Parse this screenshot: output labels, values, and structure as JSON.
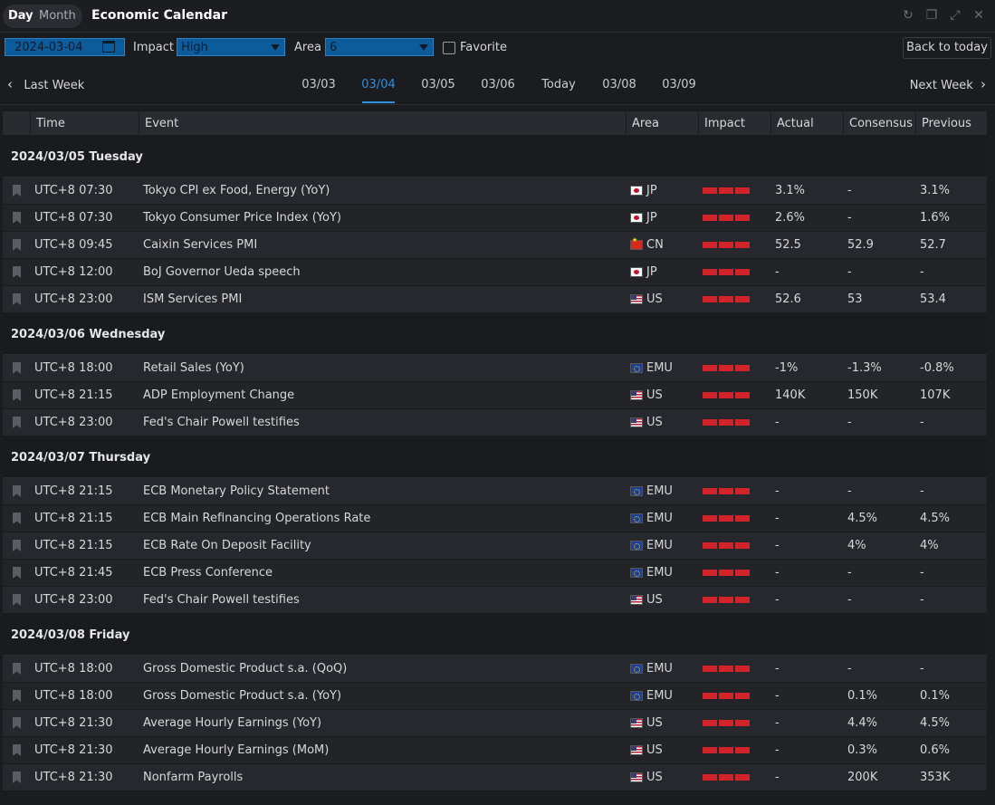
{
  "header": {
    "tab_day": "Day",
    "tab_month": "Month",
    "title": "Economic Calendar",
    "icons": [
      "refresh-icon",
      "restore-icon",
      "expand-icon",
      "close-icon"
    ]
  },
  "filters": {
    "date": "2024-03-04",
    "impact_label": "Impact",
    "impact_value": "High",
    "area_label": "Area",
    "area_value": "6",
    "favorite_label": "Favorite",
    "favorite_checked": false,
    "back_to_today": "Back to today"
  },
  "weeknav": {
    "prev": "Last Week",
    "next": "Next Week",
    "days": [
      "03/03",
      "03/04",
      "03/05",
      "03/06",
      "Today",
      "03/08",
      "03/09"
    ],
    "active": "03/04"
  },
  "columns": [
    "Time",
    "Event",
    "Area",
    "Impact",
    "Actual",
    "Consensus",
    "Previous"
  ],
  "colors": {
    "accent": "#2f8fe0",
    "impact_bar": "#d0232a",
    "input_bg": "#0c5c9c"
  },
  "groups": [
    {
      "date": "2024/03/05 Tuesday",
      "rows": [
        {
          "time": "UTC+8 07:30",
          "event": "Tokyo CPI ex Food, Energy (YoY)",
          "flag": "jp",
          "area": "JP",
          "actual": "3.1%",
          "consensus": "-",
          "previous": "3.1%"
        },
        {
          "time": "UTC+8 07:30",
          "event": "Tokyo Consumer Price Index (YoY)",
          "flag": "jp",
          "area": "JP",
          "actual": "2.6%",
          "consensus": "-",
          "previous": "1.6%"
        },
        {
          "time": "UTC+8 09:45",
          "event": "Caixin Services PMI",
          "flag": "cn",
          "area": "CN",
          "actual": "52.5",
          "consensus": "52.9",
          "previous": "52.7"
        },
        {
          "time": "UTC+8 12:00",
          "event": "BoJ Governor Ueda speech",
          "flag": "jp",
          "area": "JP",
          "actual": "-",
          "consensus": "-",
          "previous": "-"
        },
        {
          "time": "UTC+8 23:00",
          "event": "ISM Services PMI",
          "flag": "us",
          "area": "US",
          "actual": "52.6",
          "consensus": "53",
          "previous": "53.4"
        }
      ]
    },
    {
      "date": "2024/03/06 Wednesday",
      "rows": [
        {
          "time": "UTC+8 18:00",
          "event": "Retail Sales (YoY)",
          "flag": "emu",
          "area": "EMU",
          "actual": "-1%",
          "consensus": "-1.3%",
          "previous": "-0.8%"
        },
        {
          "time": "UTC+8 21:15",
          "event": "ADP Employment Change",
          "flag": "us",
          "area": "US",
          "actual": "140K",
          "consensus": "150K",
          "previous": "107K"
        },
        {
          "time": "UTC+8 23:00",
          "event": "Fed's Chair Powell testifies",
          "flag": "us",
          "area": "US",
          "actual": "-",
          "consensus": "-",
          "previous": "-"
        }
      ]
    },
    {
      "date": "2024/03/07 Thursday",
      "rows": [
        {
          "time": "UTC+8 21:15",
          "event": "ECB Monetary Policy Statement",
          "flag": "emu",
          "area": "EMU",
          "actual": "-",
          "consensus": "-",
          "previous": "-"
        },
        {
          "time": "UTC+8 21:15",
          "event": "ECB Main Refinancing Operations Rate",
          "flag": "emu",
          "area": "EMU",
          "actual": "-",
          "consensus": "4.5%",
          "previous": "4.5%"
        },
        {
          "time": "UTC+8 21:15",
          "event": "ECB Rate On Deposit Facility",
          "flag": "emu",
          "area": "EMU",
          "actual": "-",
          "consensus": "4%",
          "previous": "4%"
        },
        {
          "time": "UTC+8 21:45",
          "event": "ECB Press Conference",
          "flag": "emu",
          "area": "EMU",
          "actual": "-",
          "consensus": "-",
          "previous": "-"
        },
        {
          "time": "UTC+8 23:00",
          "event": "Fed's Chair Powell testifies",
          "flag": "us",
          "area": "US",
          "actual": "-",
          "consensus": "-",
          "previous": "-"
        }
      ]
    },
    {
      "date": "2024/03/08 Friday",
      "rows": [
        {
          "time": "UTC+8 18:00",
          "event": "Gross Domestic Product s.a. (QoQ)",
          "flag": "emu",
          "area": "EMU",
          "actual": "-",
          "consensus": "-",
          "previous": "-"
        },
        {
          "time": "UTC+8 18:00",
          "event": "Gross Domestic Product s.a. (YoY)",
          "flag": "emu",
          "area": "EMU",
          "actual": "-",
          "consensus": "0.1%",
          "previous": "0.1%"
        },
        {
          "time": "UTC+8 21:30",
          "event": "Average Hourly Earnings (YoY)",
          "flag": "us",
          "area": "US",
          "actual": "-",
          "consensus": "4.4%",
          "previous": "4.5%"
        },
        {
          "time": "UTC+8 21:30",
          "event": "Average Hourly Earnings (MoM)",
          "flag": "us",
          "area": "US",
          "actual": "-",
          "consensus": "0.3%",
          "previous": "0.6%"
        },
        {
          "time": "UTC+8 21:30",
          "event": "Nonfarm Payrolls",
          "flag": "us",
          "area": "US",
          "actual": "-",
          "consensus": "200K",
          "previous": "353K"
        }
      ]
    }
  ]
}
